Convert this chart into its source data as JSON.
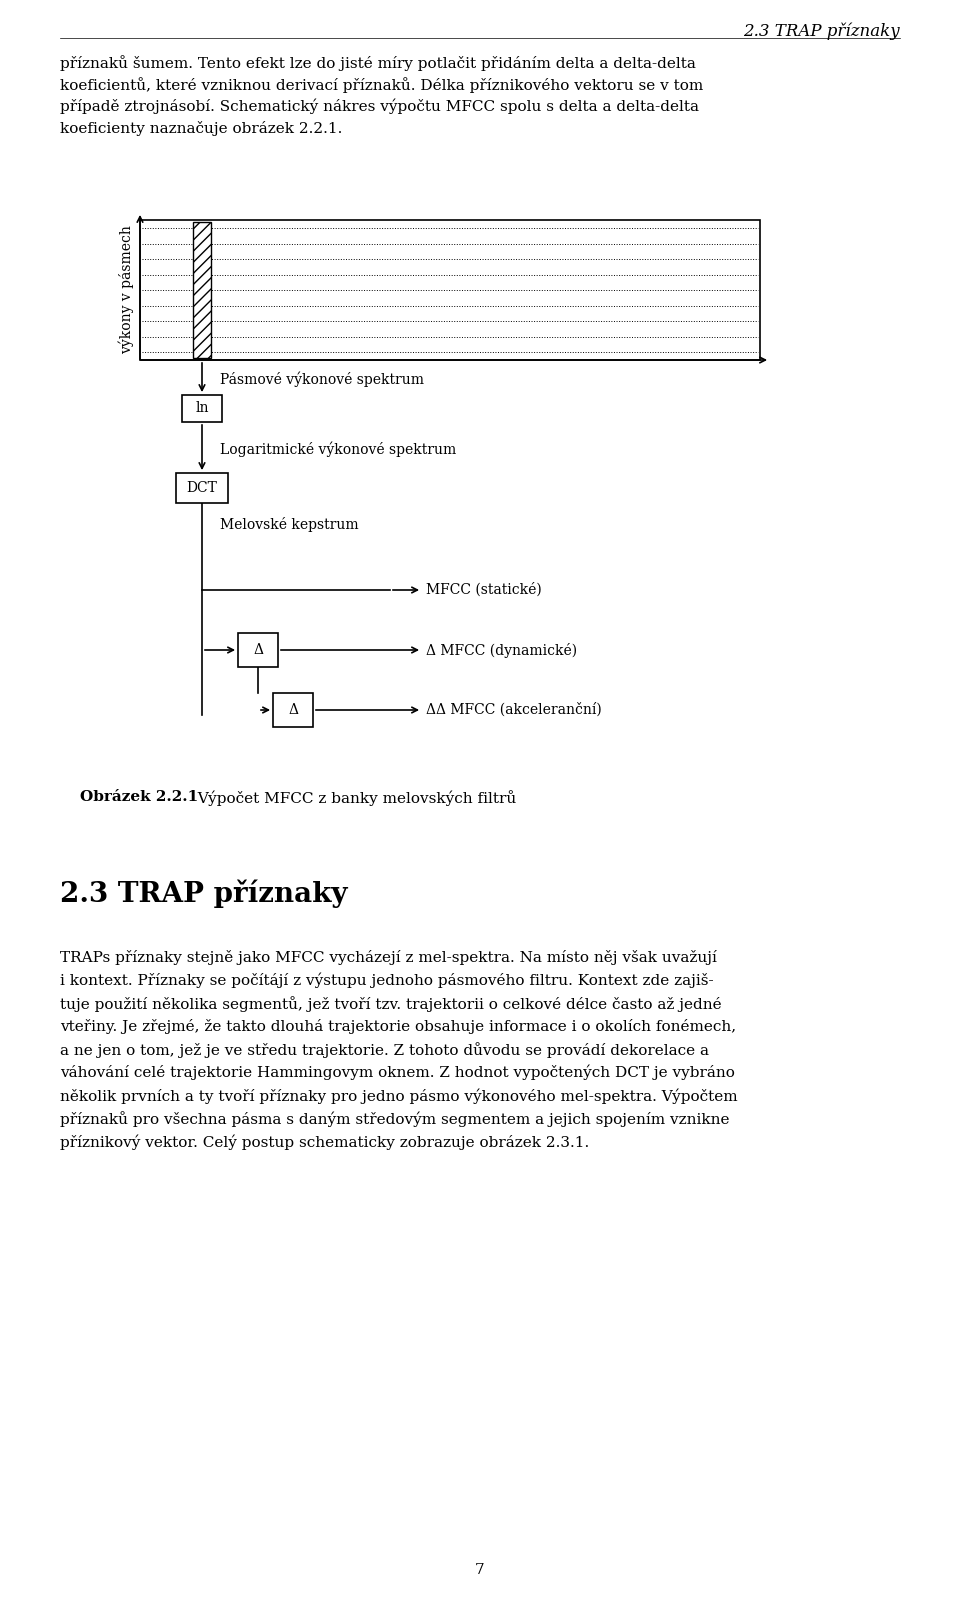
{
  "title_header": "2.3 TRAP příznaky",
  "ylabel_rotated": "výkony v pásmech",
  "label_pasmove": "Pásmové výkonové spektrum",
  "label_logaritmicke": "Logaritmické výkonové spektrum",
  "label_melovske": "Melovské kepstrum",
  "label_mfcc_static": "MFCC (statické)",
  "label_mfcc_dynamic": "Δ MFCC (dynamické)",
  "label_mfcc_accel": "ΔΔ MFCC (akceleranční)",
  "box_ln": "ln",
  "box_dct": "DCT",
  "box_delta1": "Δ",
  "box_delta2": "Δ",
  "caption_bold": "Obrázek 2.2.1",
  "caption_normal": "  Výpočet MFCC z banky melovských filtrů",
  "body1": [
    "příznaků šumem. Tento efekt lze do jisté míry potlačit přidáním delta a delta-delta",
    "koeficientů, které vzniknou derivací příznaků. Délka příznikového vektoru se v tom",
    "případě ztrojnásobí. Schematický nákres výpočtu MFCC spolu s delta a delta-delta",
    "koeficienty naznačuje obrázek 2.2.1."
  ],
  "section_header": "2.3 TRAP příznaky",
  "body2": [
    "TRAPs příznaky stejně jako MFCC vycházejí z mel-spektra. Na místo něj však uvažují",
    "i kontext. Příznaky se počítájí z výstupu jednoho pásmového filtru. Kontext zde zajiš-",
    "tuje použití několika segmentů, jež tvoří tzv. trajektorii o celkové délce často až jedné",
    "vteřiny. Je zřejmé, že takto dlouhá trajektorie obsahuje informace i o okolích fonémech,",
    "a ne jen o tom, jež je ve středu trajektorie. Z tohoto důvodu se provádí dekorelace a",
    "váhování celé trajektorie Hammingovym oknem. Z hodnot vypočtených DCT je vybráno",
    "několik prvních a ty tvoří příznaky pro jedno pásmo výkonového mel-spektra. Výpočtem",
    "příznaků pro všechna pásma s daným středovým segmentem a jejich spojením vznikne",
    "příznikový vektor. Celý postup schematicky zobrazuje obrázek 2.3.1."
  ],
  "page_number": "7",
  "background_color": "#ffffff",
  "text_color": "#000000",
  "line_color": "#000000"
}
